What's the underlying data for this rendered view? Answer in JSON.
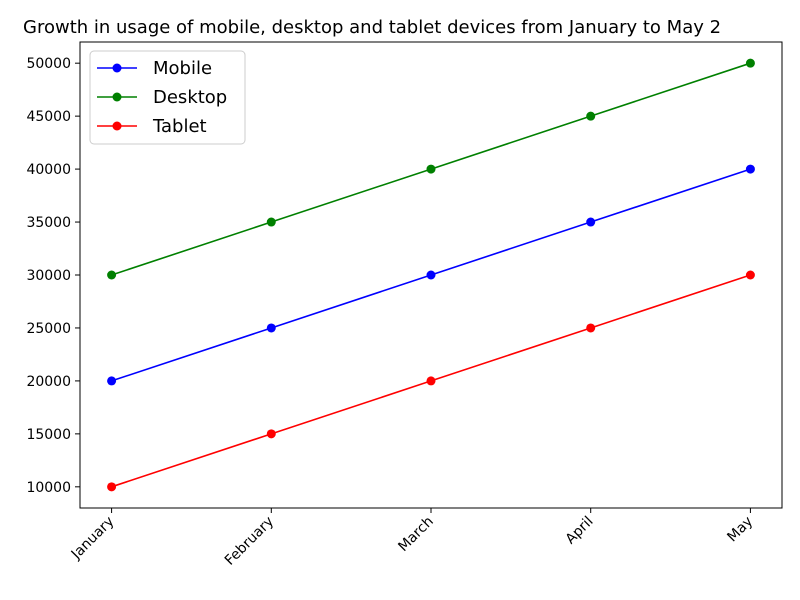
{
  "chart_data": {
    "type": "line",
    "title": "Growth in usage of mobile, desktop and tablet devices from January to May 2",
    "xlabel": "",
    "ylabel": "",
    "categories": [
      "January",
      "February",
      "March",
      "April",
      "May"
    ],
    "ylim": [
      8000,
      52000
    ],
    "yticks": [
      10000,
      15000,
      20000,
      25000,
      30000,
      35000,
      40000,
      45000,
      50000
    ],
    "grid": false,
    "legend_position": "top-left",
    "series": [
      {
        "name": "Mobile",
        "color": "#0000ff",
        "values": [
          20000,
          25000,
          30000,
          35000,
          40000
        ]
      },
      {
        "name": "Desktop",
        "color": "#008000",
        "values": [
          30000,
          35000,
          40000,
          45000,
          50000
        ]
      },
      {
        "name": "Tablet",
        "color": "#ff0000",
        "values": [
          10000,
          15000,
          20000,
          25000,
          30000
        ]
      }
    ]
  }
}
